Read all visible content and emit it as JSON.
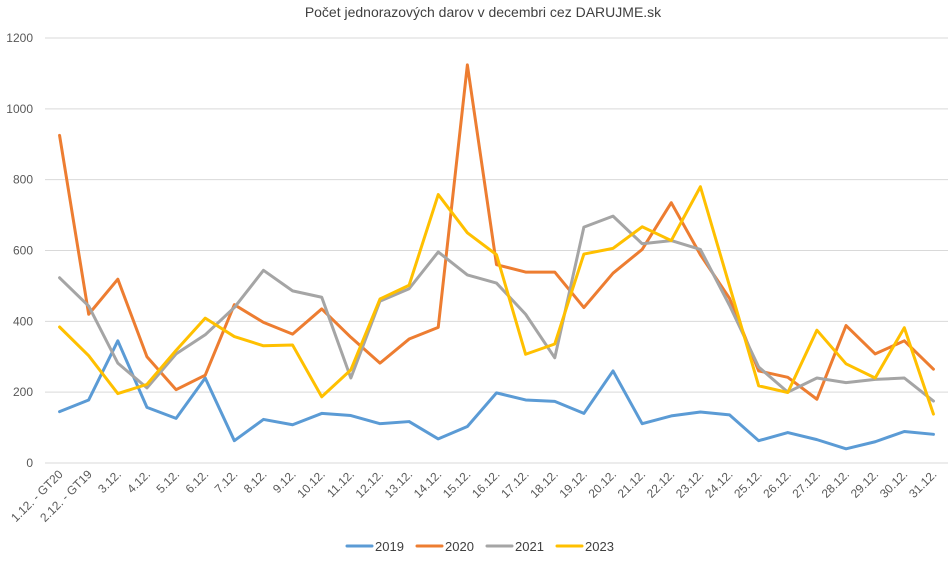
{
  "chart_data": {
    "type": "line",
    "title": "Počet jednorazových darov v decembri cez DARUJME.sk",
    "xlabel": "",
    "ylabel": "",
    "ylim": [
      0,
      1200
    ],
    "yticks": [
      0,
      200,
      400,
      600,
      800,
      1000,
      1200
    ],
    "grid": true,
    "legend_position": "bottom",
    "categories": [
      "1.12. - GT20",
      "2.12. - GT19",
      "3.12.",
      "4.12.",
      "5.12.",
      "6.12.",
      "7.12.",
      "8.12.",
      "9.12.",
      "10.12.",
      "11.12.",
      "12.12.",
      "13.12.",
      "14.12.",
      "15.12.",
      "16.12.",
      "17.12.",
      "18.12.",
      "19.12.",
      "20.12.",
      "21.12.",
      "22.12.",
      "23.12.",
      "24.12.",
      "25.12.",
      "26.12.",
      "27.12.",
      "28.12.",
      "29.12.",
      "30.12.",
      "31.12."
    ],
    "series": [
      {
        "name": "2019",
        "color": "#5B9BD5",
        "values": [
          145,
          178,
          345,
          157,
          126,
          240,
          63,
          123,
          108,
          140,
          134,
          111,
          117,
          68,
          103,
          198,
          178,
          174,
          140,
          260,
          111,
          133,
          144,
          136,
          63,
          86,
          66,
          40,
          60,
          89,
          81
        ]
      },
      {
        "name": "2020",
        "color": "#ED7D31",
        "values": [
          925,
          420,
          519,
          300,
          207,
          248,
          447,
          397,
          364,
          435,
          355,
          282,
          350,
          383,
          1124,
          560,
          539,
          539,
          439,
          536,
          603,
          735,
          588,
          465,
          260,
          242,
          180,
          388,
          308,
          345,
          265
        ]
      },
      {
        "name": "2021",
        "color": "#A5A5A5",
        "values": [
          523,
          443,
          282,
          212,
          308,
          362,
          439,
          544,
          486,
          468,
          240,
          457,
          492,
          596,
          531,
          508,
          420,
          297,
          666,
          697,
          619,
          628,
          603,
          445,
          271,
          200,
          240,
          227,
          236,
          240,
          175
        ]
      },
      {
        "name": "2023",
        "color": "#FFC000",
        "values": [
          384,
          303,
          196,
          222,
          318,
          409,
          357,
          331,
          333,
          187,
          263,
          463,
          502,
          758,
          650,
          588,
          307,
          336,
          590,
          606,
          667,
          628,
          780,
          500,
          218,
          199,
          375,
          280,
          240,
          382,
          138
        ]
      }
    ]
  }
}
